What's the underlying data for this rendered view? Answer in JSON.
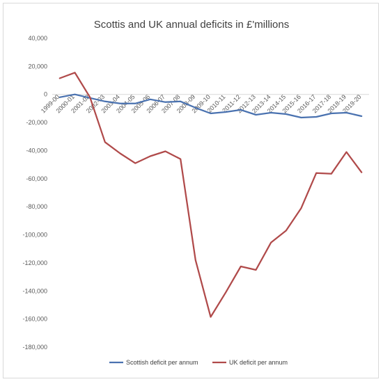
{
  "chart_data": {
    "type": "line",
    "title": "Scottis and UK annual deficits in £'millions",
    "xlabel": "",
    "ylabel": "",
    "categories": [
      "1999-00",
      "2000-01",
      "2001-02",
      "2002-03",
      "2003-04",
      "2004-05",
      "2005-06",
      "2006-07",
      "2007-08",
      "2008-09",
      "2009-10",
      "2010-11",
      "2011-12",
      "2012-13",
      "2013-14",
      "2014-15",
      "2015-16",
      "2016-17",
      "2017-18",
      "2018-19",
      "2019-20"
    ],
    "ylim": [
      -180000,
      40000
    ],
    "yticks": [
      40000,
      20000,
      0,
      -20000,
      -40000,
      -60000,
      -80000,
      -100000,
      -120000,
      -140000,
      -160000,
      -180000
    ],
    "ytick_labels": [
      "40,000",
      "20,000",
      "0",
      "-20,000",
      "-40,000",
      "-60,000",
      "-80,000",
      "-100,000",
      "-120,000",
      "-140,000",
      "-160,000",
      "-180,000"
    ],
    "grid": false,
    "legend_position": "bottom",
    "series": [
      {
        "name": "Scottish deficit per annum",
        "color": "#4a72b0",
        "values": [
          -2000,
          0,
          -2500,
          -5000,
          -6500,
          -6500,
          -3500,
          -5500,
          -5000,
          -9500,
          -13500,
          -12500,
          -11000,
          -14500,
          -13000,
          -14000,
          -16500,
          -16000,
          -13500,
          -13000,
          -15500
        ]
      },
      {
        "name": "UK deficit per annum",
        "color": "#b04a4a",
        "values": [
          11500,
          15500,
          -2000,
          -34000,
          -42000,
          -49000,
          -44000,
          -40500,
          -46000,
          -118000,
          -158500,
          -141000,
          -122500,
          -125000,
          -105500,
          -97000,
          -81000,
          -56000,
          -56500,
          -41000,
          -55500
        ]
      }
    ]
  }
}
